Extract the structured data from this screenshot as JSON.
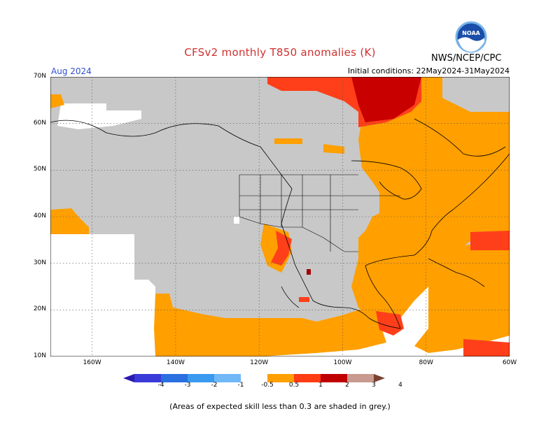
{
  "title": "CFSv2 monthly T850 anomalies (K)",
  "organization": "NWS/NCEP/CPC",
  "logo_text": "NOAA",
  "valid_month": "Aug 2024",
  "initial_conditions": "Initial conditions: 22May2024-31May2024",
  "footnote": "(Areas of expected skill less than 0.3 are shaded in grey.)",
  "map": {
    "lat_labels": [
      {
        "text": "70N",
        "lat": 70
      },
      {
        "text": "60N",
        "lat": 60
      },
      {
        "text": "50N",
        "lat": 50
      },
      {
        "text": "40N",
        "lat": 40
      },
      {
        "text": "30N",
        "lat": 30
      },
      {
        "text": "20N",
        "lat": 20
      },
      {
        "text": "10N",
        "lat": 10
      }
    ],
    "lon_labels": [
      {
        "text": "160W",
        "lon": -160
      },
      {
        "text": "140W",
        "lon": -140
      },
      {
        "text": "120W",
        "lon": -120
      },
      {
        "text": "100W",
        "lon": -100
      },
      {
        "text": "80W",
        "lon": -80
      },
      {
        "text": "60W",
        "lon": -60
      }
    ],
    "lat_range": [
      10,
      70
    ],
    "lon_range": [
      -170,
      -60
    ],
    "colors": {
      "low_skill": "#c8c8c8",
      "c05_1": "#ff9f00",
      "c1_2": "#ff3f1a",
      "c2_3": "#c80000",
      "c3_4": "#a00000",
      "land_lines": "#000000"
    }
  },
  "colorbar": {
    "labels": [
      "-4",
      "-3",
      "-2",
      "-1",
      "-0.5",
      "0.5",
      "1",
      "2",
      "3",
      "4"
    ],
    "colors": [
      "#2a1ab0",
      "#3a3ad8",
      "#2a70e0",
      "#3a9af0",
      "#70b8f8",
      "#ffffff",
      "#ffa000",
      "#ff3c14",
      "#c00000",
      "#c89a90",
      "#7a4030"
    ]
  }
}
